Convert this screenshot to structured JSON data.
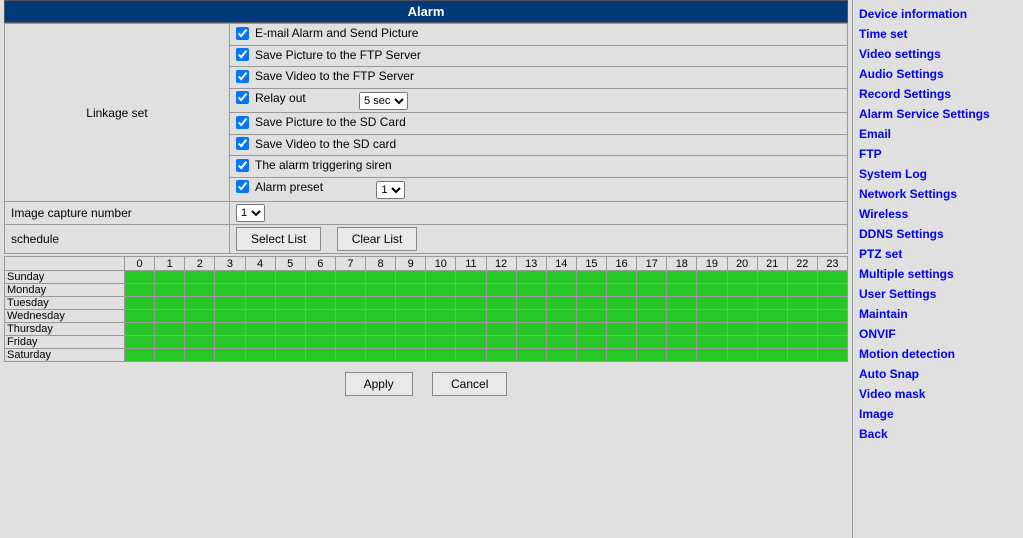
{
  "title": "Alarm",
  "linkage_label": "Linkage set",
  "linkage": {
    "email_alarm": {
      "label": "E-mail Alarm and Send Picture",
      "checked": true
    },
    "save_pic_ftp": {
      "label": "Save Picture to the FTP Server",
      "checked": true
    },
    "save_vid_ftp": {
      "label": "Save Video to the FTP Server",
      "checked": true
    },
    "relay_out": {
      "label": "Relay out",
      "checked": true,
      "value": "5 sec"
    },
    "save_pic_sd": {
      "label": "Save Picture to the SD Card",
      "checked": true
    },
    "save_vid_sd": {
      "label": "Save Video to the SD card",
      "checked": true
    },
    "siren": {
      "label": "The alarm triggering siren",
      "checked": true
    },
    "preset": {
      "label": "Alarm preset",
      "checked": true,
      "value": "1"
    }
  },
  "image_capture_label": "Image capture number",
  "image_capture_value": "1",
  "schedule_label": "schedule",
  "buttons": {
    "select_list": "Select List",
    "clear_list": "Clear List",
    "apply": "Apply",
    "cancel": "Cancel"
  },
  "hours": [
    "0",
    "1",
    "2",
    "3",
    "4",
    "5",
    "6",
    "7",
    "8",
    "9",
    "10",
    "11",
    "12",
    "13",
    "14",
    "15",
    "16",
    "17",
    "18",
    "19",
    "20",
    "21",
    "22",
    "23"
  ],
  "days": [
    "Sunday",
    "Monday",
    "Tuesday",
    "Wednesday",
    "Thursday",
    "Friday",
    "Saturday"
  ],
  "schedule_cell_color": "#28c828",
  "sidebar": [
    "Device information",
    "Time set",
    "Video settings",
    "Audio Settings",
    "Record Settings",
    "Alarm Service Settings",
    "Email",
    "FTP",
    "System Log",
    "Network Settings",
    "Wireless",
    "DDNS Settings",
    "PTZ set",
    "Multiple settings",
    "User Settings",
    "Maintain",
    "ONVIF",
    "Motion detection",
    "Auto Snap",
    "Video mask",
    "Image",
    "Back"
  ]
}
